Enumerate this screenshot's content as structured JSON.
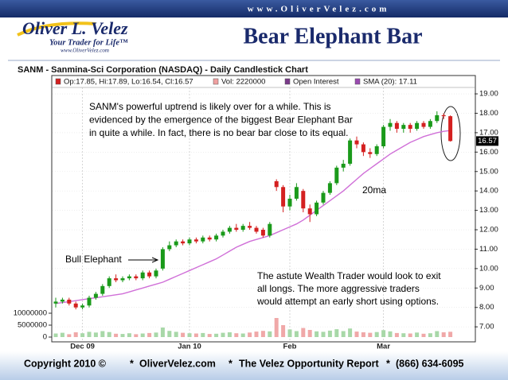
{
  "header": {
    "site": "www.OliverVelez.com",
    "logo_name": "Oliver L. Velez",
    "logo_tagline": "Your Trader for Life™",
    "logo_url": "www.OliverVelez.com",
    "title": "Bear Elephant Bar"
  },
  "chart_data": {
    "type": "candlestick",
    "title": "SANM - Sanmina-Sci Corporation (NASDAQ) - Daily Candlestick Chart",
    "legend": [
      {
        "label": "Op:17.85, Hi:17.89, Lo:16.54, Cl:16.57",
        "color": "#d42020"
      },
      {
        "label": "Vol: 2220000",
        "color": "#f0a0a0"
      },
      {
        "label": "Open Interest",
        "color": "#7a3a8a"
      },
      {
        "label": "SMA (20): 17.11",
        "color": "#9a4ab0"
      }
    ],
    "categories": [
      null,
      null,
      null,
      null,
      "Dec 09",
      null,
      null,
      null,
      null,
      null,
      null,
      null,
      null,
      null,
      null,
      null,
      null,
      null,
      null,
      null,
      "Jan 10",
      null,
      null,
      null,
      null,
      null,
      null,
      null,
      null,
      null,
      null,
      null,
      null,
      null,
      null,
      "Feb",
      null,
      null,
      null,
      null,
      null,
      null,
      null,
      null,
      null,
      null,
      null,
      null,
      null,
      "Mar",
      null,
      null,
      null,
      null,
      null,
      null,
      null,
      null,
      null,
      null
    ],
    "open": [
      8.2,
      8.3,
      8.4,
      8.2,
      8.0,
      8.1,
      8.5,
      8.7,
      9.1,
      9.5,
      9.4,
      9.5,
      9.6,
      9.5,
      9.8,
      9.6,
      10.0,
      11.0,
      11.2,
      11.4,
      11.3,
      11.5,
      11.4,
      11.6,
      11.5,
      11.7,
      11.9,
      12.1,
      12.0,
      12.2,
      12.1,
      12.0,
      11.7,
      14.5,
      14.2,
      13.2,
      13.6,
      14.0,
      13.1,
      12.8,
      13.4,
      13.9,
      14.4,
      15.2,
      15.4,
      16.6,
      16.4,
      16.0,
      15.9,
      16.3,
      17.3,
      17.5,
      17.2,
      17.4,
      17.2,
      17.5,
      17.3,
      17.6,
      17.9,
      17.85
    ],
    "high": [
      8.5,
      8.5,
      8.5,
      8.3,
      8.2,
      8.6,
      8.8,
      9.2,
      9.6,
      9.7,
      9.6,
      9.7,
      9.7,
      9.9,
      9.9,
      10.0,
      11.1,
      11.4,
      11.5,
      11.5,
      11.6,
      11.6,
      11.7,
      11.7,
      11.8,
      12.0,
      12.2,
      12.3,
      12.3,
      12.4,
      12.2,
      12.1,
      12.4,
      14.6,
      14.3,
      13.8,
      14.4,
      14.1,
      13.3,
      13.5,
      14.0,
      14.5,
      15.3,
      15.6,
      16.7,
      16.8,
      16.5,
      16.2,
      16.4,
      17.4,
      17.7,
      17.6,
      17.5,
      17.5,
      17.6,
      17.6,
      17.7,
      18.1,
      18.0,
      17.89
    ],
    "low": [
      8.0,
      8.2,
      8.1,
      7.9,
      7.9,
      8.0,
      8.4,
      8.6,
      9.0,
      9.3,
      9.3,
      9.4,
      9.4,
      9.4,
      9.5,
      9.5,
      9.9,
      10.9,
      11.1,
      11.2,
      11.2,
      11.3,
      11.3,
      11.4,
      11.4,
      11.6,
      11.8,
      11.9,
      11.9,
      12.0,
      11.8,
      11.6,
      11.6,
      14.0,
      12.9,
      13.0,
      13.5,
      12.9,
      12.4,
      12.7,
      13.3,
      13.8,
      14.3,
      15.0,
      15.3,
      16.2,
      15.8,
      15.7,
      15.8,
      16.2,
      17.1,
      17.0,
      17.0,
      17.0,
      17.1,
      17.2,
      17.2,
      17.5,
      17.7,
      16.54
    ],
    "close": [
      8.3,
      8.4,
      8.2,
      8.0,
      8.1,
      8.5,
      8.7,
      9.1,
      9.5,
      9.4,
      9.5,
      9.6,
      9.5,
      9.8,
      9.6,
      9.9,
      11.0,
      11.2,
      11.4,
      11.3,
      11.5,
      11.4,
      11.6,
      11.5,
      11.7,
      11.9,
      12.1,
      12.0,
      12.2,
      12.1,
      11.9,
      11.7,
      12.3,
      14.2,
      13.2,
      13.6,
      14.2,
      13.1,
      12.8,
      13.4,
      13.9,
      14.4,
      15.2,
      15.4,
      16.6,
      16.4,
      16.0,
      15.9,
      16.3,
      17.3,
      17.5,
      17.2,
      17.4,
      17.2,
      17.5,
      17.3,
      17.6,
      17.9,
      17.85,
      16.57
    ],
    "up_color": "#1a9a1a",
    "down_color": "#d42020",
    "sma": {
      "color": "#d070d8",
      "values": [
        8.2,
        8.25,
        8.3,
        8.35,
        8.4,
        8.45,
        8.5,
        8.55,
        8.6,
        8.65,
        8.7,
        8.8,
        8.9,
        9.0,
        9.1,
        9.2,
        9.3,
        9.45,
        9.6,
        9.75,
        9.9,
        10.05,
        10.2,
        10.35,
        10.5,
        10.7,
        10.9,
        11.1,
        11.25,
        11.4,
        11.5,
        11.6,
        11.7,
        11.85,
        12.0,
        12.15,
        12.3,
        12.5,
        12.75,
        13.0,
        13.25,
        13.5,
        13.75,
        14.0,
        14.3,
        14.6,
        14.9,
        15.15,
        15.4,
        15.65,
        15.9,
        16.1,
        16.3,
        16.5,
        16.65,
        16.8,
        16.9,
        17.0,
        17.07,
        17.11
      ]
    },
    "volume": {
      "up_color": "#a8d8a8",
      "down_color": "#f0a8a8",
      "values": [
        1500000,
        1800000,
        1200000,
        2000000,
        1600000,
        2200000,
        1900000,
        2500000,
        2100000,
        1400000,
        1300000,
        1600000,
        1200000,
        1500000,
        1700000,
        1900000,
        4000000,
        2600000,
        2200000,
        1800000,
        1600000,
        1500000,
        1700000,
        1300000,
        1400000,
        1800000,
        2000000,
        1600000,
        1500000,
        1900000,
        2300000,
        2600000,
        2400000,
        8000000,
        5000000,
        3200000,
        2500000,
        3800000,
        3000000,
        2400000,
        2200000,
        2700000,
        3300000,
        2500000,
        3600000,
        2300000,
        2000000,
        1800000,
        2100000,
        2900000,
        2400000,
        1700000,
        1600000,
        1500000,
        1900000,
        1400000,
        1600000,
        2500000,
        2000000,
        2220000
      ]
    },
    "ylim": [
      6.35,
      19.33
    ],
    "yticks": [
      {
        "value": 7,
        "label": "7.00"
      },
      {
        "value": 8,
        "label": "8.00"
      },
      {
        "value": 9,
        "label": "9.00"
      },
      {
        "value": 10,
        "label": "10.00"
      },
      {
        "value": 11,
        "label": "11.00"
      },
      {
        "value": 12,
        "label": "12.00"
      },
      {
        "value": 13,
        "label": "13.00"
      },
      {
        "value": 14,
        "label": "14.00"
      },
      {
        "value": 15,
        "label": "15.00"
      },
      {
        "value": 16,
        "label": "16.00"
      },
      {
        "value": 17,
        "label": "17.00"
      },
      {
        "value": 18,
        "label": "18.00"
      },
      {
        "value": 19,
        "label": "19.00"
      }
    ],
    "y2lim": [
      0,
      10000000
    ],
    "y2ticks": [
      0,
      5000000,
      10000000
    ],
    "grid": true,
    "annotations": {
      "top": [
        "SANM's powerful uptrend is likely over for a while. This is",
        "evidenced by the emergence of the biggest Bear Elephant Bar",
        "in quite a while. In fact, there is no bear bar close to its equal."
      ],
      "sma_label": "20ma",
      "bull_label": "Bull Elephant",
      "bottom": [
        "The astute Wealth Trader would look to exit",
        "all longs. The more aggressive traders",
        "would attempt an early short using options."
      ]
    }
  },
  "footer": {
    "items": [
      "Copyright 2010 ©",
      "OliverVelez.com",
      "The Velez Opportunity Report",
      "(866) 634-6095"
    ],
    "separator": "*"
  }
}
